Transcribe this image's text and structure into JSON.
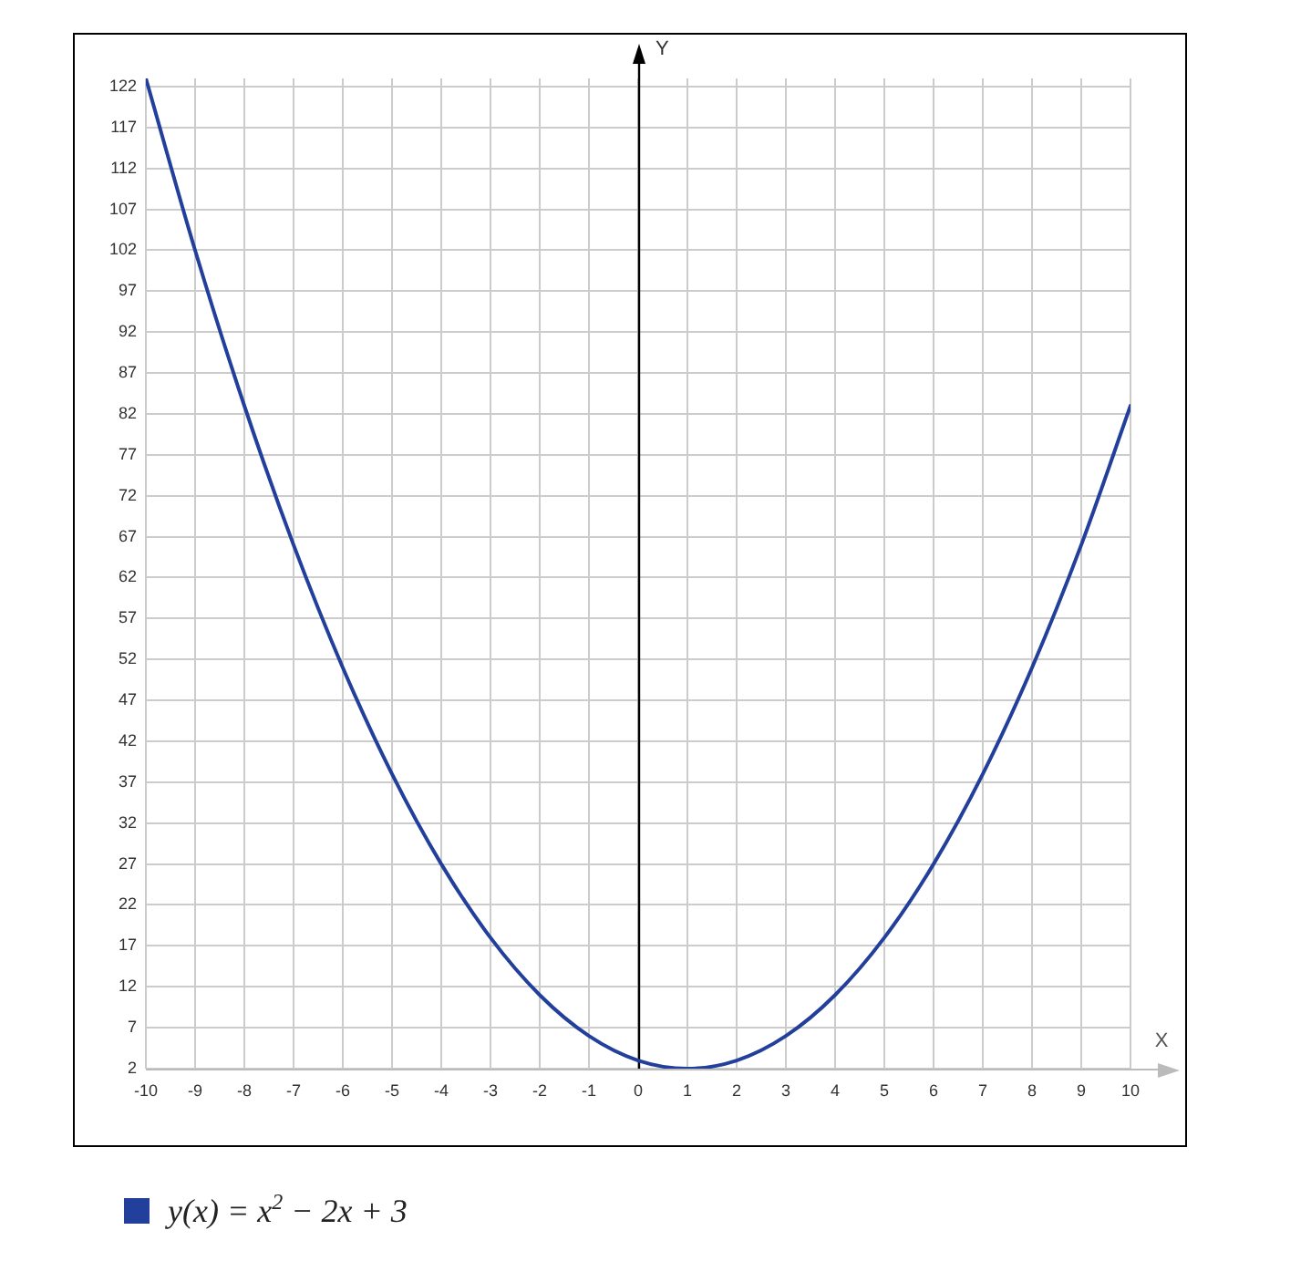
{
  "chart_data": {
    "type": "line",
    "xlabel": "X",
    "ylabel": "Y",
    "x": [
      -10,
      -9,
      -8,
      -7,
      -6,
      -5,
      -4,
      -3,
      -2,
      -1,
      0,
      1,
      2,
      3,
      4,
      5,
      6,
      7,
      8,
      9,
      10
    ],
    "series": [
      {
        "name": "y(x) = x$^{2}$ − 2x + 3",
        "color": "#233f9c",
        "values": [
          123,
          102,
          83,
          66,
          51,
          38,
          27,
          18,
          11,
          6,
          3,
          2,
          3,
          6,
          11,
          18,
          27,
          38,
          51,
          66,
          83
        ]
      }
    ],
    "xlim": [
      -10,
      10
    ],
    "ylim": [
      2,
      123
    ],
    "xticks": [
      -10,
      -9,
      -8,
      -7,
      -6,
      -5,
      -4,
      -3,
      -2,
      -1,
      0,
      1,
      2,
      3,
      4,
      5,
      6,
      7,
      8,
      9,
      10
    ],
    "yticks": [
      2,
      7,
      12,
      17,
      22,
      27,
      32,
      37,
      42,
      47,
      52,
      57,
      62,
      67,
      72,
      77,
      82,
      87,
      92,
      97,
      102,
      107,
      112,
      117,
      122
    ],
    "grid": true,
    "legend": "bottom",
    "marker": "none",
    "line_style": "solid"
  }
}
